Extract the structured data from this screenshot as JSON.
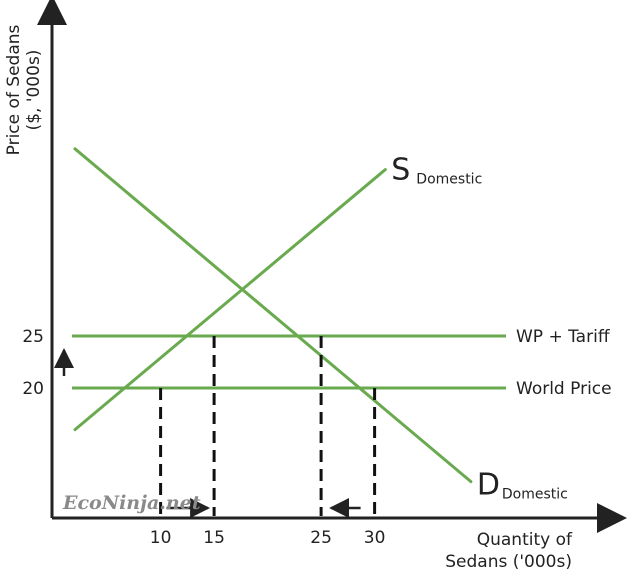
{
  "chart_data": {
    "type": "line",
    "ylabel": "Price of Sedans ($, '000s)",
    "ylabel_lines": [
      "Price of Sedans",
      "($, '000s)"
    ],
    "xlabel": "Quantity of Sedans ('000s)",
    "xlabel_lines": [
      "Quantity of",
      "Sedans ('000s)"
    ],
    "x_ticks": [
      10,
      15,
      25,
      30
    ],
    "y_ticks": [
      20,
      25
    ],
    "series": [
      {
        "name": "S",
        "subscript": "Domestic",
        "kind": "supply",
        "points": [
          [
            2,
            16
          ],
          [
            10,
            20
          ],
          [
            15,
            25
          ],
          [
            31,
            41
          ]
        ]
      },
      {
        "name": "D",
        "subscript": "Domestic",
        "kind": "demand",
        "points": [
          [
            2,
            43
          ],
          [
            25,
            25
          ],
          [
            30,
            20
          ],
          [
            39,
            11
          ]
        ]
      }
    ],
    "price_lines": [
      {
        "label": "WP + Tariff",
        "price": 25
      },
      {
        "label": "World Price",
        "price": 20
      }
    ],
    "guides": [
      {
        "x": 10,
        "y": 20
      },
      {
        "x": 15,
        "y": 25
      },
      {
        "x": 25,
        "y": 25
      },
      {
        "x": 30,
        "y": 20
      }
    ],
    "arrows": [
      {
        "direction": "up",
        "meaning": "price rises 20 to 25"
      },
      {
        "direction": "right",
        "from": 10,
        "to": 15
      },
      {
        "direction": "left",
        "from": 30,
        "to": 25
      }
    ],
    "colors": {
      "curve": "#6aaa4f",
      "axis": "#222222",
      "guide": "#111111"
    }
  },
  "watermark": "EcoNinja.net"
}
